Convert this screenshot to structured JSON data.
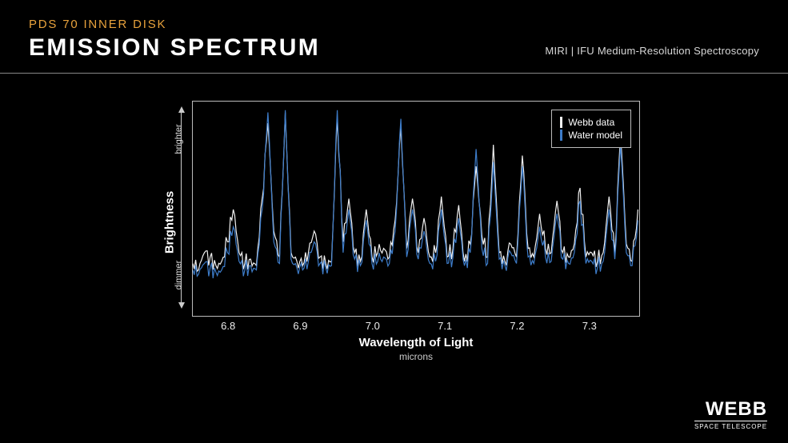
{
  "header": {
    "subtitle": "PDS 70 INNER DISK",
    "title": "EMISSION SPECTRUM",
    "instrument": "MIRI | IFU Medium-Resolution Spectroscopy"
  },
  "chart": {
    "type": "line",
    "xlabel": "Wavelength of Light",
    "xunit": "microns",
    "ylabel": "Brightness",
    "ysub_top": "brighter",
    "ysub_bot": "dimmer",
    "xlim": [
      6.75,
      7.37
    ],
    "ylim": [
      0,
      1
    ],
    "xticks": [
      6.8,
      6.9,
      7.0,
      7.1,
      7.2,
      7.3
    ],
    "background_color": "#000000",
    "border_color": "#bbbbbb",
    "line_width": 1.2,
    "legend": {
      "position": "top-right",
      "border_color": "#bbbbbb",
      "items": [
        {
          "label": "Webb data",
          "color": "#f0f0f0"
        },
        {
          "label": "Water model",
          "color": "#3d7cc9"
        }
      ]
    },
    "x": [
      6.75,
      6.758,
      6.766,
      6.774,
      6.782,
      6.79,
      6.798,
      6.806,
      6.814,
      6.822,
      6.83,
      6.838,
      6.846,
      6.854,
      6.862,
      6.87,
      6.878,
      6.886,
      6.894,
      6.902,
      6.91,
      6.918,
      6.926,
      6.934,
      6.942,
      6.95,
      6.958,
      6.966,
      6.974,
      6.982,
      6.99,
      6.998,
      7.006,
      7.014,
      7.022,
      7.03,
      7.038,
      7.046,
      7.054,
      7.062,
      7.07,
      7.078,
      7.086,
      7.094,
      7.102,
      7.11,
      7.118,
      7.126,
      7.134,
      7.142,
      7.15,
      7.158,
      7.166,
      7.174,
      7.182,
      7.19,
      7.198,
      7.206,
      7.214,
      7.222,
      7.23,
      7.238,
      7.246,
      7.254,
      7.262,
      7.27,
      7.278,
      7.286,
      7.294,
      7.302,
      7.31,
      7.318,
      7.326,
      7.334,
      7.342,
      7.35,
      7.358,
      7.366
    ],
    "webb_y": [
      0.25,
      0.22,
      0.3,
      0.28,
      0.24,
      0.26,
      0.35,
      0.5,
      0.3,
      0.25,
      0.27,
      0.24,
      0.55,
      0.9,
      0.4,
      0.28,
      0.95,
      0.3,
      0.26,
      0.24,
      0.3,
      0.4,
      0.28,
      0.25,
      0.26,
      0.92,
      0.35,
      0.55,
      0.3,
      0.26,
      0.5,
      0.28,
      0.3,
      0.32,
      0.28,
      0.45,
      0.88,
      0.32,
      0.55,
      0.3,
      0.46,
      0.28,
      0.3,
      0.56,
      0.28,
      0.32,
      0.52,
      0.26,
      0.34,
      0.7,
      0.38,
      0.28,
      0.8,
      0.3,
      0.26,
      0.34,
      0.28,
      0.75,
      0.32,
      0.28,
      0.48,
      0.32,
      0.3,
      0.54,
      0.3,
      0.28,
      0.34,
      0.6,
      0.28,
      0.3,
      0.26,
      0.3,
      0.56,
      0.3,
      0.85,
      0.34,
      0.26,
      0.5
    ],
    "model_y": [
      0.22,
      0.2,
      0.25,
      0.23,
      0.21,
      0.22,
      0.3,
      0.42,
      0.26,
      0.22,
      0.24,
      0.22,
      0.5,
      0.95,
      0.35,
      0.25,
      0.96,
      0.27,
      0.23,
      0.22,
      0.26,
      0.35,
      0.25,
      0.23,
      0.24,
      0.96,
      0.3,
      0.5,
      0.27,
      0.24,
      0.45,
      0.25,
      0.26,
      0.28,
      0.25,
      0.4,
      0.92,
      0.28,
      0.5,
      0.27,
      0.4,
      0.25,
      0.26,
      0.5,
      0.25,
      0.28,
      0.46,
      0.24,
      0.3,
      0.78,
      0.32,
      0.25,
      0.72,
      0.27,
      0.24,
      0.3,
      0.25,
      0.7,
      0.28,
      0.25,
      0.42,
      0.28,
      0.26,
      0.48,
      0.27,
      0.25,
      0.3,
      0.54,
      0.25,
      0.26,
      0.23,
      0.26,
      0.5,
      0.27,
      0.8,
      0.3,
      0.24,
      0.45
    ]
  },
  "logo": {
    "main": "WEBB",
    "sub": "SPACE TELESCOPE"
  }
}
